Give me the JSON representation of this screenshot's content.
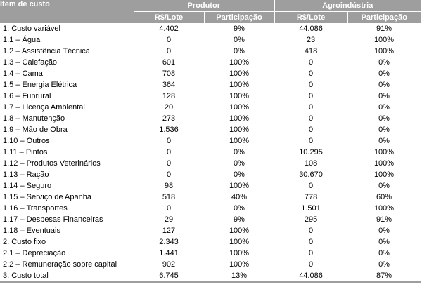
{
  "header": {
    "item_label": "Item de custo",
    "group_produtor": "Produtor",
    "group_agroindustria": "Agroindústria",
    "col_rs_lote": "R$/Lote",
    "col_participacao": "Participação"
  },
  "rows": [
    {
      "item": "1. Custo variável",
      "p_rs": "4.402",
      "p_part": "9%",
      "a_rs": "44.086",
      "a_part": "91%"
    },
    {
      "item": "1.1 – Água",
      "p_rs": "0",
      "p_part": "0%",
      "a_rs": "23",
      "a_part": "100%"
    },
    {
      "item": "1.2 – Assistência Técnica",
      "p_rs": "0",
      "p_part": "0%",
      "a_rs": "418",
      "a_part": "100%"
    },
    {
      "item": "1.3 – Calefação",
      "p_rs": "601",
      "p_part": "100%",
      "a_rs": "0",
      "a_part": "0%"
    },
    {
      "item": "1.4 – Cama",
      "p_rs": "708",
      "p_part": "100%",
      "a_rs": "0",
      "a_part": "0%"
    },
    {
      "item": "1.5 – Energia Elétrica",
      "p_rs": "364",
      "p_part": "100%",
      "a_rs": "0",
      "a_part": "0%"
    },
    {
      "item": "1.6 – Funrural",
      "p_rs": "128",
      "p_part": "100%",
      "a_rs": "0",
      "a_part": "0%"
    },
    {
      "item": "1.7 – Licença Ambiental",
      "p_rs": "20",
      "p_part": "100%",
      "a_rs": "0",
      "a_part": "0%"
    },
    {
      "item": "1.8 – Manutenção",
      "p_rs": "273",
      "p_part": "100%",
      "a_rs": "0",
      "a_part": "0%"
    },
    {
      "item": "1.9 – Mão de Obra",
      "p_rs": "1.536",
      "p_part": "100%",
      "a_rs": "0",
      "a_part": "0%"
    },
    {
      "item": "1.10 – Outros",
      "p_rs": "0",
      "p_part": "100%",
      "a_rs": "0",
      "a_part": "0%"
    },
    {
      "item": "1.11 – Pintos",
      "p_rs": "0",
      "p_part": "0%",
      "a_rs": "10.295",
      "a_part": "100%"
    },
    {
      "item": "1.12 – Produtos Veterinários",
      "p_rs": "0",
      "p_part": "0%",
      "a_rs": "108",
      "a_part": "100%"
    },
    {
      "item": "1.13 – Ração",
      "p_rs": "0",
      "p_part": "0%",
      "a_rs": "30.670",
      "a_part": "100%"
    },
    {
      "item": "1.14 – Seguro",
      "p_rs": "98",
      "p_part": "100%",
      "a_rs": "0",
      "a_part": "0%"
    },
    {
      "item": "1.15 – Serviço de Apanha",
      "p_rs": "518",
      "p_part": "40%",
      "a_rs": "778",
      "a_part": "60%"
    },
    {
      "item": "1.16 – Transportes",
      "p_rs": "0",
      "p_part": "0%",
      "a_rs": "1.501",
      "a_part": "100%"
    },
    {
      "item": "1.17 – Despesas Financeiras",
      "p_rs": "29",
      "p_part": "9%",
      "a_rs": "295",
      "a_part": "91%"
    },
    {
      "item": "1.18 – Eventuais",
      "p_rs": "127",
      "p_part": "100%",
      "a_rs": "0",
      "a_part": "0%"
    },
    {
      "item": "2. Custo fixo",
      "p_rs": "2.343",
      "p_part": "100%",
      "a_rs": "0",
      "a_part": "0%"
    },
    {
      "item": "2.1 – Depreciação",
      "p_rs": "1.441",
      "p_part": "100%",
      "a_rs": "0",
      "a_part": "0%"
    },
    {
      "item": "2.2 – Remuneração sobre capital",
      "p_rs": "902",
      "p_part": "100%",
      "a_rs": "0",
      "a_part": "0%"
    },
    {
      "item": "3. Custo total",
      "p_rs": "6.745",
      "p_part": "13%",
      "a_rs": "44.086",
      "a_part": "87%"
    }
  ],
  "colors": {
    "header_bg": "#9e9e9e",
    "header_text": "#ffffff",
    "body_text": "#000000"
  }
}
